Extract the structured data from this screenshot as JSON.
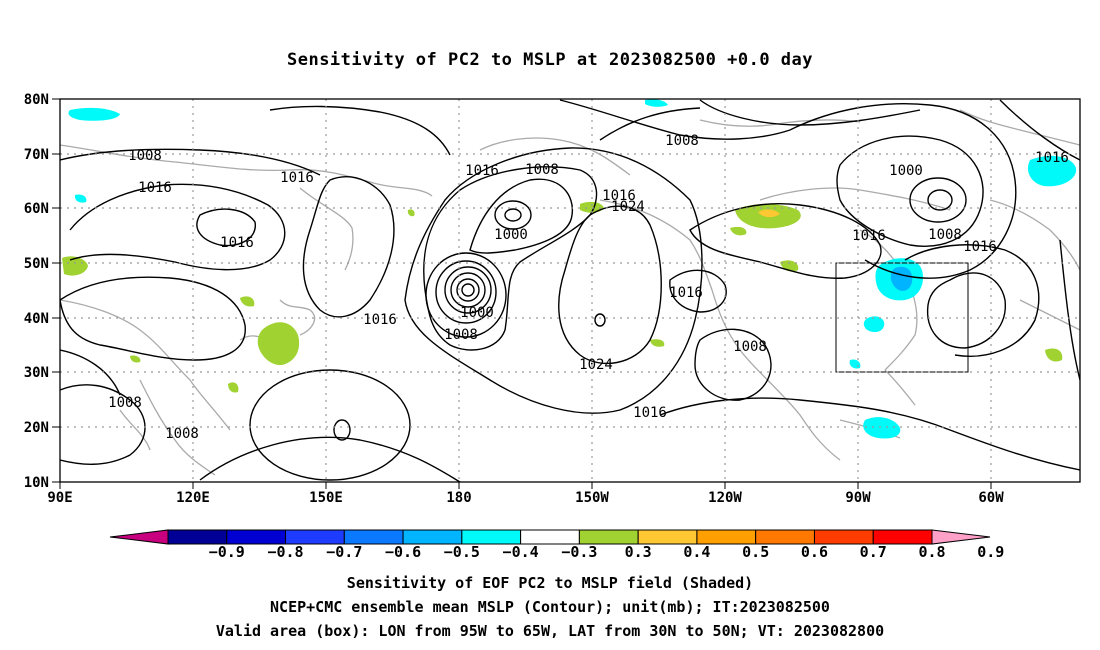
{
  "title": "Sensitivity of PC2 to MSLP at 2023082500 +0.0 day",
  "lat_labels": [
    "80N",
    "70N",
    "60N",
    "50N",
    "40N",
    "30N",
    "20N",
    "10N"
  ],
  "lon_labels": [
    "90E",
    "120E",
    "150E",
    "180",
    "150W",
    "120W",
    "90W",
    "60W"
  ],
  "contour_labels": [
    "1008",
    "1016",
    "1008",
    "1016",
    "1008",
    "1016",
    "1024",
    "1016",
    "1008",
    "1000",
    "1016",
    "1016",
    "1000",
    "1016",
    "1008",
    "1016",
    "1016",
    "1016",
    "1008",
    "1000",
    "1008",
    "1024",
    "1016",
    "1008",
    "1008",
    "1016"
  ],
  "colorbar": {
    "labels": [
      "−0.9",
      "−0.8",
      "−0.7",
      "−0.6",
      "−0.5",
      "−0.4",
      "−0.3",
      "0.3",
      "0.4",
      "0.5",
      "0.6",
      "0.7",
      "0.8",
      "0.9"
    ],
    "colors": [
      "#c80080",
      "#000096",
      "#0000d2",
      "#1e3cff",
      "#0a78ff",
      "#00b4ff",
      "#00fafa",
      "#ffffff",
      "#a0d232",
      "#ffc832",
      "#ffa000",
      "#ff7800",
      "#ff3c00",
      "#ff0000",
      "#ffa0c8"
    ]
  },
  "valid_box": {
    "lon_min": "95W",
    "lon_max": "65W",
    "lat_min": "30N",
    "lat_max": "50N"
  },
  "captions": [
    "Sensitivity of EOF PC2 to MSLP field (Shaded)",
    "NCEP+CMC ensemble mean MSLP (Contour); unit(mb); IT:2023082500",
    "Valid area (box): LON from 95W to 65W, LAT from 30N to 50N; VT: 2023082800"
  ]
}
